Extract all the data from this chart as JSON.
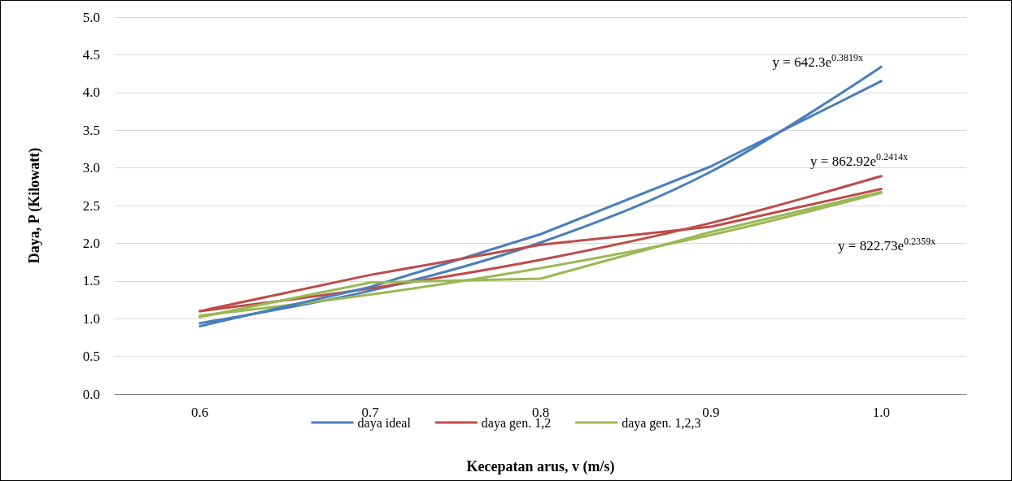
{
  "chart_data": {
    "type": "line",
    "xlabel": "Kecepatan arus, v (m/s)",
    "ylabel": "Daya, P (Kilowatt)",
    "categories": [
      "0.6",
      "0.7",
      "0.8",
      "0.9",
      "1.0"
    ],
    "series": [
      {
        "name": "daya ideal",
        "color": "#4a7ebb",
        "values": [
          0.9,
          1.42,
          2.12,
          3.02,
          4.15
        ]
      },
      {
        "name": "daya gen. 1,2",
        "color": "#be4b48",
        "values": [
          1.1,
          1.58,
          1.98,
          2.22,
          2.72
        ]
      },
      {
        "name": "daya gen. 1,2,3",
        "color": "#98b954",
        "values": [
          1.02,
          1.48,
          1.53,
          2.15,
          2.68
        ]
      },
      {
        "color": "#4a7ebb",
        "values": [
          0.94,
          1.37,
          2.01,
          2.95,
          4.34
        ]
      },
      {
        "color": "#be4b48",
        "values": [
          1.1,
          1.4,
          1.78,
          2.27,
          2.89
        ]
      },
      {
        "color": "#98b954",
        "values": [
          1.04,
          1.32,
          1.67,
          2.11,
          2.67
        ]
      }
    ],
    "ylim": [
      0,
      5
    ],
    "yticks": [
      {
        "value": 0,
        "label": "0.0"
      },
      0.5,
      {
        "value": 1,
        "label": "1.0"
      },
      1.5,
      {
        "value": 2,
        "label": "2.0"
      },
      2.5,
      {
        "value": 3,
        "label": "3.0"
      },
      3.5,
      {
        "value": 4,
        "label": "4.0"
      },
      4.5,
      {
        "value": 5,
        "label": "5.0"
      }
    ],
    "grid": "y",
    "legend": "bottom",
    "marker": "none",
    "line_style": "solid",
    "annotations": [
      "y = 642.3e$^{0.3819x}$",
      "y = 862.92e$^{0.2414x}$",
      "y = 822.73e$^{0.2359x}$"
    ]
  }
}
